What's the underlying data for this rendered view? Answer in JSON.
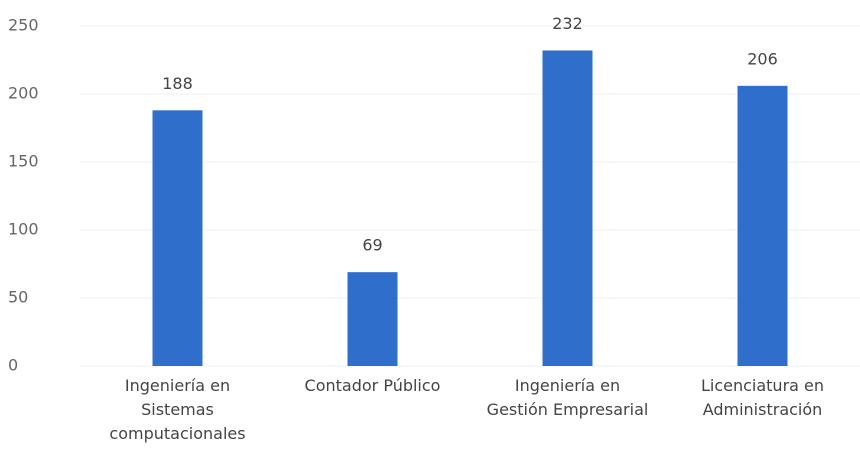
{
  "chart_data": {
    "type": "bar",
    "categories": [
      "Ingeniería en Sistemas computacionales",
      "Contador Público",
      "Ingeniería en Gestión Empresarial",
      "Licenciatura en Administración"
    ],
    "values": [
      188,
      69,
      232,
      206
    ],
    "color": "#2f6fcb",
    "ylim": [
      0,
      250
    ],
    "yticks": [
      0,
      50,
      100,
      150,
      200,
      250
    ],
    "grid": true
  }
}
